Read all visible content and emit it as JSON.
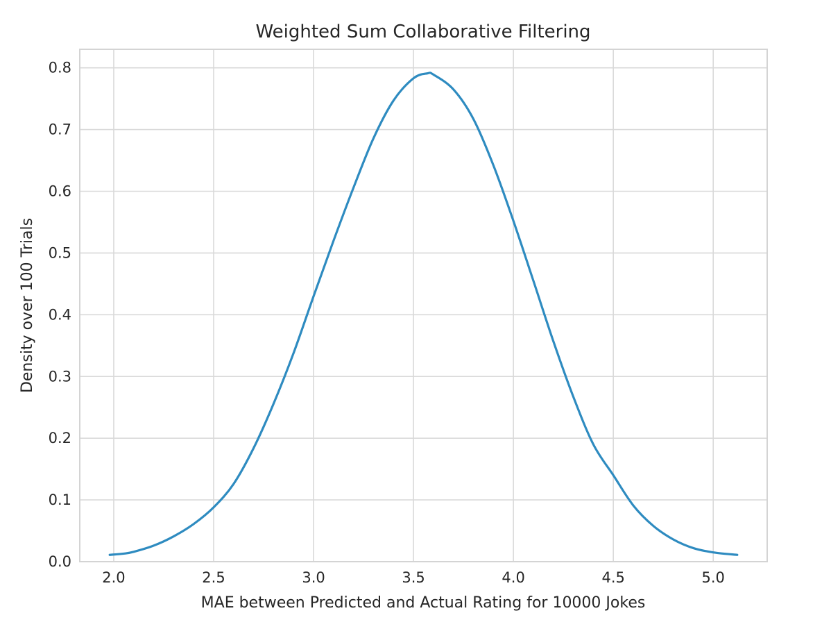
{
  "chart_data": {
    "type": "line",
    "title": "Weighted Sum Collaborative Filtering",
    "xlabel": "MAE between Predicted and Actual Rating for 10000 Jokes",
    "ylabel": "Density over 100 Trials",
    "xlim": [
      1.83,
      5.27
    ],
    "ylim": [
      0.0,
      0.83
    ],
    "xticks": [
      2.0,
      2.5,
      3.0,
      3.5,
      4.0,
      4.5,
      5.0
    ],
    "xtick_labels": [
      "2.0",
      "2.5",
      "3.0",
      "3.5",
      "4.0",
      "4.5",
      "5.0"
    ],
    "yticks": [
      0.0,
      0.1,
      0.2,
      0.3,
      0.4,
      0.5,
      0.6,
      0.7,
      0.8
    ],
    "ytick_labels": [
      "0.0",
      "0.1",
      "0.2",
      "0.3",
      "0.4",
      "0.5",
      "0.6",
      "0.7",
      "0.8"
    ],
    "grid": true,
    "series": [
      {
        "color": "#2e8bc0",
        "x": [
          1.98,
          2.05,
          2.1,
          2.2,
          2.3,
          2.4,
          2.5,
          2.6,
          2.7,
          2.8,
          2.9,
          3.0,
          3.1,
          3.2,
          3.3,
          3.4,
          3.5,
          3.57,
          3.6,
          3.7,
          3.8,
          3.9,
          4.0,
          4.1,
          4.2,
          4.3,
          4.4,
          4.5,
          4.6,
          4.7,
          4.8,
          4.9,
          5.0,
          5.12
        ],
        "y": [
          0.011,
          0.013,
          0.016,
          0.026,
          0.041,
          0.061,
          0.088,
          0.126,
          0.184,
          0.256,
          0.338,
          0.43,
          0.52,
          0.606,
          0.686,
          0.747,
          0.783,
          0.791,
          0.789,
          0.765,
          0.717,
          0.642,
          0.552,
          0.455,
          0.357,
          0.267,
          0.19,
          0.14,
          0.091,
          0.058,
          0.036,
          0.022,
          0.015,
          0.011
        ]
      }
    ]
  },
  "colors": {
    "line": "#2e8bc0",
    "grid": "#d9d9d9",
    "frame": "#d4d4d4",
    "text": "#262626"
  }
}
